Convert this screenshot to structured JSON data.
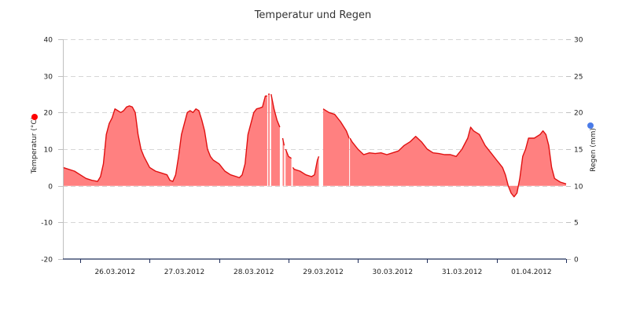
{
  "chart_data": {
    "type": "area",
    "title": "Temperatur und Regen",
    "y_left": {
      "label": "Temperatur (°C)",
      "range": [
        -20,
        40
      ],
      "ticks": [
        "-20",
        "-10",
        "0",
        "10",
        "20",
        "30",
        "40"
      ],
      "marker_color": "#ff0000"
    },
    "y_right": {
      "label": "Regen (mm)",
      "range": [
        0,
        30
      ],
      "ticks": [
        "0",
        "5",
        "10",
        "15",
        "20",
        "25",
        "30"
      ],
      "marker_color": "#4a7be8"
    },
    "x_axis": {
      "range": [
        "2012-03-25T18:00",
        "2012-04-02T00:00"
      ],
      "day_ticks": [
        "2012-03-26",
        "2012-03-27",
        "2012-03-28",
        "2012-03-29",
        "2012-03-30",
        "2012-03-31",
        "2012-04-01",
        "2012-04-02"
      ],
      "tick_labels": [
        {
          "at": "2012-03-26T12:00",
          "label": "26.03.2012"
        },
        {
          "at": "2012-03-27T12:00",
          "label": "27.03.2012"
        },
        {
          "at": "2012-03-28T12:00",
          "label": "28.03.2012"
        },
        {
          "at": "2012-03-29T12:00",
          "label": "29.03.2012"
        },
        {
          "at": "2012-03-30T12:00",
          "label": "30.03.2012"
        },
        {
          "at": "2012-03-31T12:00",
          "label": "31.03.2012"
        },
        {
          "at": "2012-04-01T12:00",
          "label": "01.04.2012"
        }
      ]
    },
    "grid": {
      "horizontal": true,
      "style": "dashed"
    },
    "colors": {
      "line": "#e01010",
      "fill": "#ff8080"
    },
    "series": [
      {
        "axis": "left",
        "segments": [
          [
            [
              "2012-03-25T18:00",
              5
            ],
            [
              "2012-03-25T20:00",
              4.5
            ],
            [
              "2012-03-25T22:00",
              4
            ],
            [
              "2012-03-26T00:00",
              3
            ],
            [
              "2012-03-26T02:00",
              2
            ],
            [
              "2012-03-26T04:00",
              1.5
            ],
            [
              "2012-03-26T06:00",
              1.2
            ],
            [
              "2012-03-26T07:00",
              2.5
            ],
            [
              "2012-03-26T08:00",
              6
            ],
            [
              "2012-03-26T09:00",
              14
            ],
            [
              "2012-03-26T10:00",
              17
            ],
            [
              "2012-03-26T11:00",
              18.5
            ],
            [
              "2012-03-26T12:00",
              21
            ],
            [
              "2012-03-26T13:00",
              20.5
            ],
            [
              "2012-03-26T14:00",
              20
            ],
            [
              "2012-03-26T15:00",
              20.5
            ],
            [
              "2012-03-26T16:00",
              21.5
            ],
            [
              "2012-03-26T17:00",
              21.8
            ],
            [
              "2012-03-26T18:00",
              21.5
            ],
            [
              "2012-03-26T19:00",
              20
            ],
            [
              "2012-03-26T20:00",
              14
            ],
            [
              "2012-03-26T21:00",
              10
            ],
            [
              "2012-03-26T22:00",
              8
            ],
            [
              "2012-03-27T00:00",
              5
            ],
            [
              "2012-03-27T02:00",
              4
            ],
            [
              "2012-03-27T04:00",
              3.5
            ],
            [
              "2012-03-27T06:00",
              3
            ],
            [
              "2012-03-27T07:00",
              1.5
            ],
            [
              "2012-03-27T08:00",
              1.2
            ],
            [
              "2012-03-27T09:00",
              3
            ],
            [
              "2012-03-27T10:00",
              8
            ],
            [
              "2012-03-27T11:00",
              14
            ],
            [
              "2012-03-27T12:00",
              17
            ],
            [
              "2012-03-27T13:00",
              20
            ],
            [
              "2012-03-27T14:00",
              20.5
            ],
            [
              "2012-03-27T15:00",
              20
            ],
            [
              "2012-03-27T16:00",
              21
            ],
            [
              "2012-03-27T17:00",
              20.5
            ],
            [
              "2012-03-27T18:00",
              18
            ],
            [
              "2012-03-27T19:00",
              15
            ],
            [
              "2012-03-27T20:00",
              10
            ],
            [
              "2012-03-27T21:00",
              8
            ],
            [
              "2012-03-27T22:00",
              7
            ],
            [
              "2012-03-28T00:00",
              6
            ],
            [
              "2012-03-28T02:00",
              4
            ],
            [
              "2012-03-28T04:00",
              3
            ],
            [
              "2012-03-28T06:00",
              2.5
            ],
            [
              "2012-03-28T07:00",
              2.2
            ],
            [
              "2012-03-28T08:00",
              3
            ],
            [
              "2012-03-28T09:00",
              6
            ],
            [
              "2012-03-28T10:00",
              14
            ],
            [
              "2012-03-28T11:00",
              17
            ],
            [
              "2012-03-28T12:00",
              20
            ],
            [
              "2012-03-28T13:00",
              21
            ],
            [
              "2012-03-28T14:00",
              21.2
            ],
            [
              "2012-03-28T15:00",
              21.5
            ],
            [
              "2012-03-28T16:00",
              24.5
            ],
            [
              "2012-03-28T16:40",
              24.5
            ]
          ],
          [
            [
              "2012-03-28T17:00",
              25
            ],
            [
              "2012-03-28T17:30",
              25
            ]
          ],
          [
            [
              "2012-03-28T18:00",
              25
            ],
            [
              "2012-03-28T19:00",
              21
            ],
            [
              "2012-03-28T20:00",
              18
            ],
            [
              "2012-03-28T21:00",
              16
            ]
          ],
          [
            [
              "2012-03-28T22:00",
              13
            ],
            [
              "2012-03-28T22:30",
              11
            ]
          ],
          [
            [
              "2012-03-28T23:00",
              10
            ],
            [
              "2012-03-29T00:00",
              8
            ],
            [
              "2012-03-29T01:00",
              7.5
            ]
          ],
          [
            [
              "2012-03-29T01:30",
              5
            ],
            [
              "2012-03-29T02:00",
              4.5
            ],
            [
              "2012-03-29T04:00",
              4
            ],
            [
              "2012-03-29T06:00",
              3
            ],
            [
              "2012-03-29T08:00",
              2.5
            ],
            [
              "2012-03-29T09:00",
              3
            ],
            [
              "2012-03-29T10:00",
              7
            ],
            [
              "2012-03-29T10:30",
              8
            ]
          ],
          [
            [
              "2012-03-29T12:00",
              21
            ],
            [
              "2012-03-29T14:00",
              20
            ],
            [
              "2012-03-29T16:00",
              19.5
            ],
            [
              "2012-03-29T18:00",
              17.5
            ],
            [
              "2012-03-29T20:00",
              15
            ],
            [
              "2012-03-29T21:00",
              13
            ]
          ],
          [
            [
              "2012-03-29T21:15",
              13
            ],
            [
              "2012-03-29T22:00",
              12
            ],
            [
              "2012-03-30T00:00",
              10
            ],
            [
              "2012-03-30T02:00",
              8.5
            ],
            [
              "2012-03-30T04:00",
              9
            ],
            [
              "2012-03-30T06:00",
              8.8
            ],
            [
              "2012-03-30T08:00",
              9
            ],
            [
              "2012-03-30T10:00",
              8.5
            ],
            [
              "2012-03-30T12:00",
              9
            ],
            [
              "2012-03-30T14:00",
              9.5
            ],
            [
              "2012-03-30T16:00",
              11
            ],
            [
              "2012-03-30T18:00",
              12
            ],
            [
              "2012-03-30T20:00",
              13.5
            ],
            [
              "2012-03-30T22:00",
              12
            ],
            [
              "2012-03-31T00:00",
              10
            ],
            [
              "2012-03-31T02:00",
              9
            ],
            [
              "2012-03-31T04:00",
              8.8
            ],
            [
              "2012-03-31T06:00",
              8.5
            ],
            [
              "2012-03-31T08:00",
              8.5
            ],
            [
              "2012-03-31T10:00",
              8
            ],
            [
              "2012-03-31T12:00",
              10
            ],
            [
              "2012-03-31T14:00",
              13
            ],
            [
              "2012-03-31T15:00",
              16
            ],
            [
              "2012-03-31T16:00",
              15
            ],
            [
              "2012-03-31T18:00",
              14
            ],
            [
              "2012-03-31T20:00",
              11
            ],
            [
              "2012-03-31T22:00",
              9
            ],
            [
              "2012-04-01T00:00",
              7
            ],
            [
              "2012-04-01T02:00",
              5
            ],
            [
              "2012-04-01T03:00",
              3
            ],
            [
              "2012-04-01T04:00",
              0
            ],
            [
              "2012-04-01T05:00",
              -2
            ],
            [
              "2012-04-01T06:00",
              -3
            ],
            [
              "2012-04-01T07:00",
              -2
            ],
            [
              "2012-04-01T08:00",
              2
            ],
            [
              "2012-04-01T09:00",
              8
            ],
            [
              "2012-04-01T10:00",
              10
            ],
            [
              "2012-04-01T11:00",
              13
            ],
            [
              "2012-04-01T13:00",
              13
            ],
            [
              "2012-04-01T15:00",
              14
            ],
            [
              "2012-04-01T16:00",
              15
            ],
            [
              "2012-04-01T17:00",
              14
            ],
            [
              "2012-04-01T18:00",
              11
            ],
            [
              "2012-04-01T19:00",
              5
            ],
            [
              "2012-04-01T20:00",
              2
            ],
            [
              "2012-04-01T22:00",
              1
            ],
            [
              "2012-04-02T00:00",
              0.5
            ]
          ]
        ]
      }
    ]
  }
}
